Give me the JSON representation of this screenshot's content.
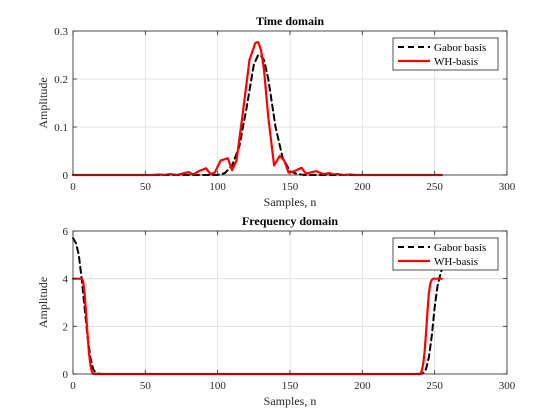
{
  "chart_data": [
    {
      "type": "line",
      "title": "Time domain",
      "xlabel": "Samples, n",
      "ylabel": "Amplitude",
      "xlim": [
        0,
        300
      ],
      "ylim": [
        0,
        0.3
      ],
      "xticks": [
        0,
        50,
        100,
        150,
        200,
        250,
        300
      ],
      "yticks": [
        0,
        0.1,
        0.2,
        0.3
      ],
      "xtick_labels": [
        "0",
        "50",
        "100",
        "150",
        "200",
        "250",
        "300"
      ],
      "ytick_labels": [
        "0",
        "0.1",
        "0.2",
        "0.3"
      ],
      "grid": true,
      "legend": "top-right",
      "series": [
        {
          "name": "Gabor basis",
          "color": "#000000",
          "dash": "dashed",
          "x": [
            0,
            100,
            105,
            110,
            115,
            120,
            125,
            128,
            130,
            132,
            135,
            140,
            145,
            150,
            155,
            160,
            255
          ],
          "y": [
            0,
            0,
            0.004,
            0.02,
            0.06,
            0.14,
            0.23,
            0.25,
            0.248,
            0.24,
            0.2,
            0.1,
            0.035,
            0.008,
            0.002,
            0,
            0
          ]
        },
        {
          "name": "WH-basis",
          "color": "#ff0000",
          "dash": "solid",
          "x": [
            0,
            55,
            60,
            63,
            67,
            72,
            77,
            80,
            83,
            87,
            92,
            95,
            98,
            102,
            107,
            110,
            113,
            117,
            122,
            126,
            128,
            130,
            132,
            135,
            139,
            143,
            146,
            149,
            153,
            158,
            161,
            164,
            168,
            173,
            177,
            180,
            183,
            187,
            192,
            195,
            200,
            255
          ],
          "y": [
            0,
            0,
            0.001,
            0,
            0.002,
            0,
            0.004,
            0.006,
            0.001,
            0.008,
            0.014,
            0.002,
            0.005,
            0.03,
            0.035,
            0.01,
            0.03,
            0.12,
            0.24,
            0.275,
            0.277,
            0.26,
            0.22,
            0.12,
            0.02,
            0.04,
            0.03,
            0.005,
            0.008,
            0.015,
            0.003,
            0.005,
            0.008,
            0.002,
            0.004,
            0.001,
            0.002,
            0,
            0.001,
            0,
            0,
            0
          ]
        }
      ]
    },
    {
      "type": "line",
      "title": "Frequency domain",
      "xlabel": "Samples, n",
      "ylabel": "Amplitude",
      "xlim": [
        0,
        300
      ],
      "ylim": [
        0,
        6
      ],
      "xticks": [
        0,
        50,
        100,
        150,
        200,
        250,
        300
      ],
      "yticks": [
        0,
        2,
        4,
        6
      ],
      "xtick_labels": [
        "0",
        "50",
        "100",
        "150",
        "200",
        "250",
        "300"
      ],
      "ytick_labels": [
        "0",
        "2",
        "4",
        "6"
      ],
      "grid": true,
      "legend": "top-right",
      "series": [
        {
          "name": "Gabor basis",
          "color": "#000000",
          "dash": "dashed",
          "x": [
            0,
            2,
            4,
            6,
            8,
            10,
            12,
            14,
            16,
            20,
            238,
            242,
            244,
            246,
            248,
            250,
            252,
            254,
            255
          ],
          "y": [
            5.7,
            5.5,
            5.0,
            4.0,
            2.8,
            1.6,
            0.7,
            0.2,
            0.02,
            0,
            0,
            0.02,
            0.2,
            0.7,
            1.6,
            2.8,
            3.7,
            4.2,
            4.4
          ]
        },
        {
          "name": "WH-basis",
          "color": "#ff0000",
          "dash": "solid",
          "x": [
            0,
            3,
            6,
            7,
            8,
            9,
            10,
            11,
            12,
            13,
            14,
            240,
            241,
            242,
            243,
            244,
            245,
            246,
            247,
            248,
            249,
            250,
            252,
            255
          ],
          "y": [
            4.0,
            4.0,
            4.0,
            3.9,
            3.4,
            2.6,
            1.7,
            0.9,
            0.4,
            0.1,
            0,
            0,
            0.1,
            0.4,
            0.9,
            1.7,
            2.6,
            3.4,
            3.8,
            3.95,
            4.0,
            4.0,
            4.0,
            4.0
          ]
        }
      ]
    }
  ]
}
